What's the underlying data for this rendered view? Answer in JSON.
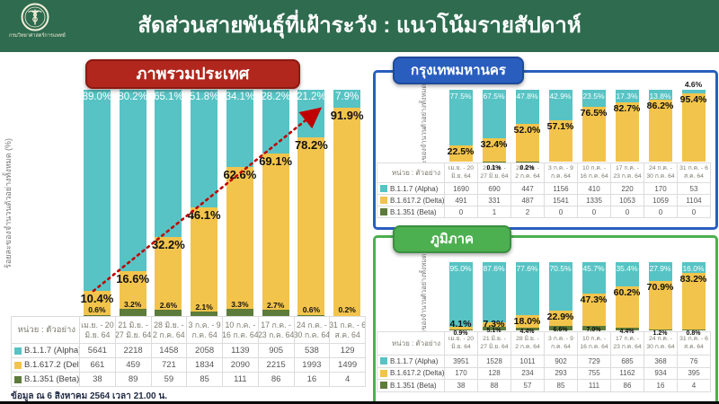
{
  "header": {
    "title": "สัดส่วนสายพันธุ์ที่เฝ้าระวัง : แนวโน้มรายสัปดาห์",
    "logo_caption": "กรมวิทยาศาสตร์การแพทย์"
  },
  "unit_label": "หน่วย : ตัวอย่าง",
  "footnote": "ข้อมูล ณ 6 สิงหาคม 2564 เวลา 21.00 น.",
  "colors": {
    "header_bg": "#2E6B4F",
    "alpha": "#57C3C4",
    "delta": "#F3C44C",
    "beta": "#5D7B3A",
    "country_box": "#B1271D",
    "bangkok_box": "#2A5EBE",
    "regions_box": "#4CAF50",
    "trend_arrow": "#C00000"
  },
  "periods_2line": [
    [
      "เม.ย. - 20",
      "มิ.ย. 64"
    ],
    [
      "21 มิ.ย. -",
      "27 มิ.ย. 64"
    ],
    [
      "28 มิ.ย. -",
      "2 ก.ค. 64"
    ],
    [
      "3 ก.ค. - 9",
      "ก.ค. 64"
    ],
    [
      "10 ก.ค. -",
      "16 ก.ค. 64"
    ],
    [
      "17 ก.ค. -",
      "23 ก.ค. 64"
    ],
    [
      "24 ก.ค. -",
      "30 ก.ค. 64"
    ],
    [
      "31 ก.ค. - 6",
      "ส.ค. 64"
    ]
  ],
  "chart_data": [
    {
      "id": "country",
      "type": "bar",
      "stacked": true,
      "title": "ภาพรวมประเทศ",
      "ylabel": "ร้อยละของจำนวนตัวอย่างทั้งหมด (%)",
      "ylabel_lines": [
        "ร้อยละของจำนวนตัวอย่างทั้งหมด (%)"
      ],
      "ylim": [
        0,
        100
      ],
      "legend_position": "bottom-table",
      "trend_arrow": true,
      "categories": [
        "เม.ย. - 20 มิ.ย. 64",
        "21 มิ.ย. - 27 มิ.ย. 64",
        "28 มิ.ย. - 2 ก.ค. 64",
        "3 ก.ค. - 9 ก.ค. 64",
        "10 ก.ค. - 16 ก.ค. 64",
        "17 ก.ค. - 23 ก.ค. 64",
        "24 ก.ค. - 30 ก.ค. 64",
        "31 ก.ค. - 6 ส.ค. 64"
      ],
      "series": [
        {
          "name": "B.1.1.7 (Alpha)",
          "color": "#57C3C4",
          "pct": [
            89.0,
            80.2,
            65.1,
            51.8,
            34.1,
            28.2,
            21.2,
            7.9
          ],
          "counts": [
            5641,
            2218,
            1458,
            2058,
            1139,
            905,
            538,
            129
          ]
        },
        {
          "name": "B.1.617.2 (Delta)",
          "color": "#F3C44C",
          "pct": [
            10.4,
            16.6,
            32.2,
            46.1,
            62.6,
            69.1,
            78.2,
            91.9
          ],
          "counts": [
            661,
            459,
            721,
            1834,
            2090,
            2215,
            1993,
            1499
          ]
        },
        {
          "name": "B.1.351 (Beta)",
          "color": "#5D7B3A",
          "pct": [
            0.6,
            3.2,
            2.6,
            2.1,
            3.3,
            2.7,
            0.6,
            0.2
          ],
          "counts": [
            38,
            89,
            59,
            85,
            111,
            86,
            16,
            4
          ]
        }
      ]
    },
    {
      "id": "bangkok",
      "type": "bar",
      "stacked": true,
      "title": "กรุงเทพมหานคร",
      "ylabel": "ร้อยละของจำนวนตัวอย่างทั้งหมด (%)",
      "ylabel_lines": [
        "ร้อยละของจำนวน",
        "ตัวอย่างทั้งหมด (%)"
      ],
      "ylim": [
        0,
        100
      ],
      "legend_position": "bottom-table",
      "trend_arrow": false,
      "categories": [
        "เม.ย. - 20 มิ.ย. 64",
        "21 มิ.ย. - 27 มิ.ย. 64",
        "28 มิ.ย. - 2 ก.ค. 64",
        "3 ก.ค. - 9 ก.ค. 64",
        "10 ก.ค. - 16 ก.ค. 64",
        "17 ก.ค. - 23 ก.ค. 64",
        "24 ก.ค. - 30 ก.ค. 64",
        "31 ก.ค. - 6 ส.ค. 64"
      ],
      "series": [
        {
          "name": "B.1.1.7 (Alpha)",
          "color": "#57C3C4",
          "pct": [
            77.5,
            67.5,
            47.8,
            42.9,
            23.5,
            17.3,
            13.8,
            4.6
          ],
          "counts": [
            1690,
            690,
            447,
            1156,
            410,
            220,
            170,
            53
          ]
        },
        {
          "name": "B.1.617.2 (Delta)",
          "color": "#F3C44C",
          "pct": [
            22.5,
            32.4,
            52.0,
            57.1,
            76.5,
            82.7,
            86.2,
            95.4
          ],
          "counts": [
            491,
            331,
            487,
            1541,
            1335,
            1053,
            1059,
            1104
          ]
        },
        {
          "name": "B.1.351 (Beta)",
          "color": "#5D7B3A",
          "pct": [
            0,
            0.1,
            0.2,
            0,
            0,
            0,
            0,
            0
          ],
          "counts": [
            0,
            1,
            2,
            0,
            0,
            0,
            0,
            0
          ]
        }
      ]
    },
    {
      "id": "regions",
      "type": "bar",
      "stacked": true,
      "title": "ภูมิภาค",
      "ylabel": "ร้อยละของจำนวนตัวอย่างทั้งหมด (%)",
      "ylabel_lines": [
        "ร้อยละของจำนวน",
        "ตัวอย่างทั้งหมด (%)"
      ],
      "ylim": [
        0,
        100
      ],
      "legend_position": "bottom-table",
      "trend_arrow": false,
      "categories": [
        "เม.ย. - 20 มิ.ย. 64",
        "21 มิ.ย. - 27 มิ.ย. 64",
        "28 มิ.ย. - 2 ก.ค. 64",
        "3 ก.ค. - 9 ก.ค. 64",
        "10 ก.ค. - 16 ก.ค. 64",
        "17 ก.ค. - 23 ก.ค. 64",
        "24 ก.ค. - 30 ก.ค. 64",
        "31 ก.ค. - 6 ส.ค. 64"
      ],
      "series": [
        {
          "name": "B.1.1.7 (Alpha)",
          "color": "#57C3C4",
          "pct": [
            95.0,
            87.6,
            77.6,
            70.5,
            45.7,
            35.4,
            27.9,
            16.0
          ],
          "counts": [
            3951,
            1528,
            1011,
            902,
            729,
            685,
            368,
            76
          ]
        },
        {
          "name": "B.1.617.2 (Delta)",
          "color": "#F3C44C",
          "pct": [
            4.1,
            7.3,
            18.0,
            22.9,
            47.3,
            60.2,
            70.9,
            83.2
          ],
          "counts": [
            170,
            128,
            234,
            293,
            755,
            1162,
            934,
            395
          ]
        },
        {
          "name": "B.1.351 (Beta)",
          "color": "#5D7B3A",
          "pct": [
            0.9,
            5.1,
            4.4,
            6.6,
            7.0,
            4.4,
            1.2,
            0.8
          ],
          "counts": [
            38,
            88,
            57,
            85,
            111,
            86,
            16,
            4
          ]
        }
      ]
    }
  ]
}
